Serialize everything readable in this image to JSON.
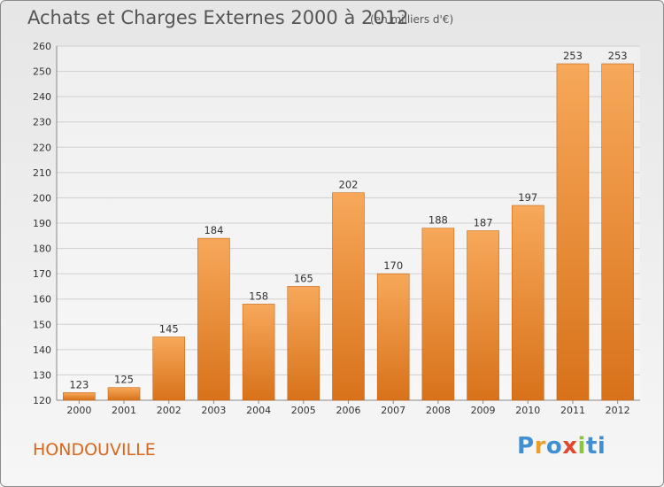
{
  "header": {
    "title": "Achats et Charges Externes 2000 à 2012",
    "subtitle": "(en milliers d'€)"
  },
  "footer": {
    "commune": "HONDOUVILLE",
    "logo_text": "Proxiti"
  },
  "colors": {
    "bar": "#f08a28",
    "bar_light": "#f7a85a",
    "bar_dark": "#d8721a",
    "grid": "#d0d0d0",
    "commune_text": "#d9671c"
  },
  "chart_data": {
    "type": "bar",
    "title": "Achats et Charges Externes 2000 à 2012",
    "subtitle": "(en milliers d'€)",
    "categories": [
      "2000",
      "2001",
      "2002",
      "2003",
      "2004",
      "2005",
      "2006",
      "2007",
      "2008",
      "2009",
      "2010",
      "2011",
      "2012"
    ],
    "values": [
      123,
      125,
      145,
      184,
      158,
      165,
      202,
      170,
      188,
      187,
      197,
      253,
      253
    ],
    "ylim": [
      120,
      260
    ],
    "yticks": [
      120,
      130,
      140,
      150,
      160,
      170,
      180,
      190,
      200,
      210,
      220,
      230,
      240,
      250,
      260
    ],
    "grid": true,
    "legend": "none"
  }
}
